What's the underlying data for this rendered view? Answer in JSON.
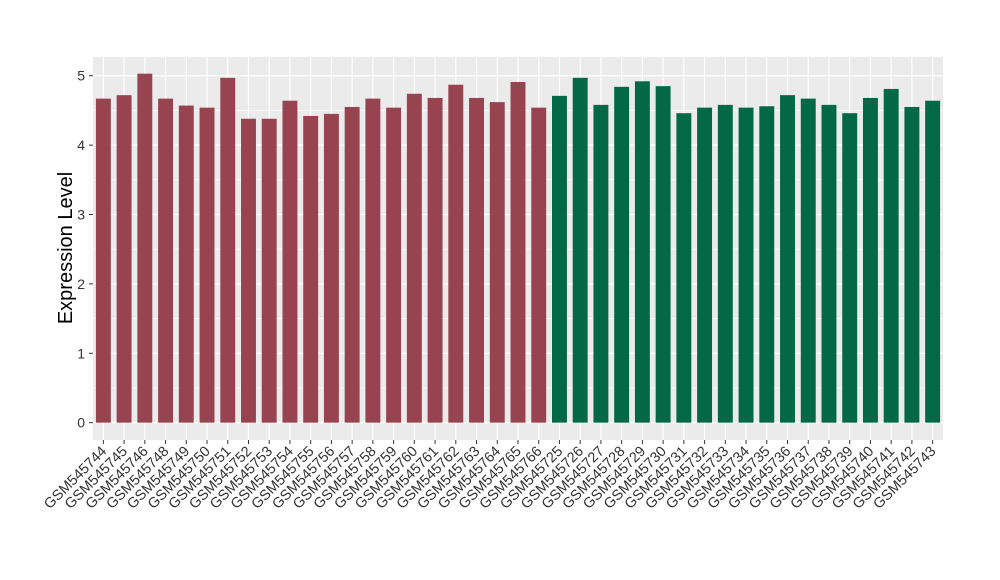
{
  "chart_data": {
    "type": "bar",
    "y_label": "Expression Level",
    "categories": [
      "GSM545744",
      "GSM545745",
      "GSM545746",
      "GSM545748",
      "GSM545749",
      "GSM545750",
      "GSM545751",
      "GSM545752",
      "GSM545753",
      "GSM545754",
      "GSM545755",
      "GSM545756",
      "GSM545757",
      "GSM545758",
      "GSM545759",
      "GSM545760",
      "GSM545761",
      "GSM545762",
      "GSM545763",
      "GSM545764",
      "GSM545765",
      "GSM545766",
      "GSM545725",
      "GSM545726",
      "GSM545727",
      "GSM545728",
      "GSM545729",
      "GSM545730",
      "GSM545731",
      "GSM545732",
      "GSM545733",
      "GSM545734",
      "GSM545735",
      "GSM545736",
      "GSM545737",
      "GSM545738",
      "GSM545739",
      "GSM545740",
      "GSM545741",
      "GSM545742",
      "GSM545743"
    ],
    "values": [
      4.67,
      4.72,
      5.03,
      4.67,
      4.57,
      4.54,
      4.97,
      4.38,
      4.38,
      4.64,
      4.42,
      4.45,
      4.55,
      4.67,
      4.54,
      4.74,
      4.68,
      4.87,
      4.68,
      4.62,
      4.91,
      4.54,
      4.71,
      4.97,
      4.58,
      4.84,
      4.92,
      4.85,
      4.46,
      4.54,
      4.58,
      4.54,
      4.56,
      4.72,
      4.67,
      4.58,
      4.46,
      4.68,
      4.81,
      4.55,
      4.64
    ],
    "colors": [
      "#984450",
      "#984450",
      "#984450",
      "#984450",
      "#984450",
      "#984450",
      "#984450",
      "#984450",
      "#984450",
      "#984450",
      "#984450",
      "#984450",
      "#984450",
      "#984450",
      "#984450",
      "#984450",
      "#984450",
      "#984450",
      "#984450",
      "#984450",
      "#984450",
      "#984450",
      "#036845",
      "#036845",
      "#036845",
      "#036845",
      "#036845",
      "#036845",
      "#036845",
      "#036845",
      "#036845",
      "#036845",
      "#036845",
      "#036845",
      "#036845",
      "#036845",
      "#036845",
      "#036845",
      "#036845",
      "#036845",
      "#036845"
    ],
    "ylim": [
      -0.25,
      5.27
    ],
    "yticks": [
      0,
      1,
      2,
      3,
      4,
      5
    ],
    "grid": true
  }
}
